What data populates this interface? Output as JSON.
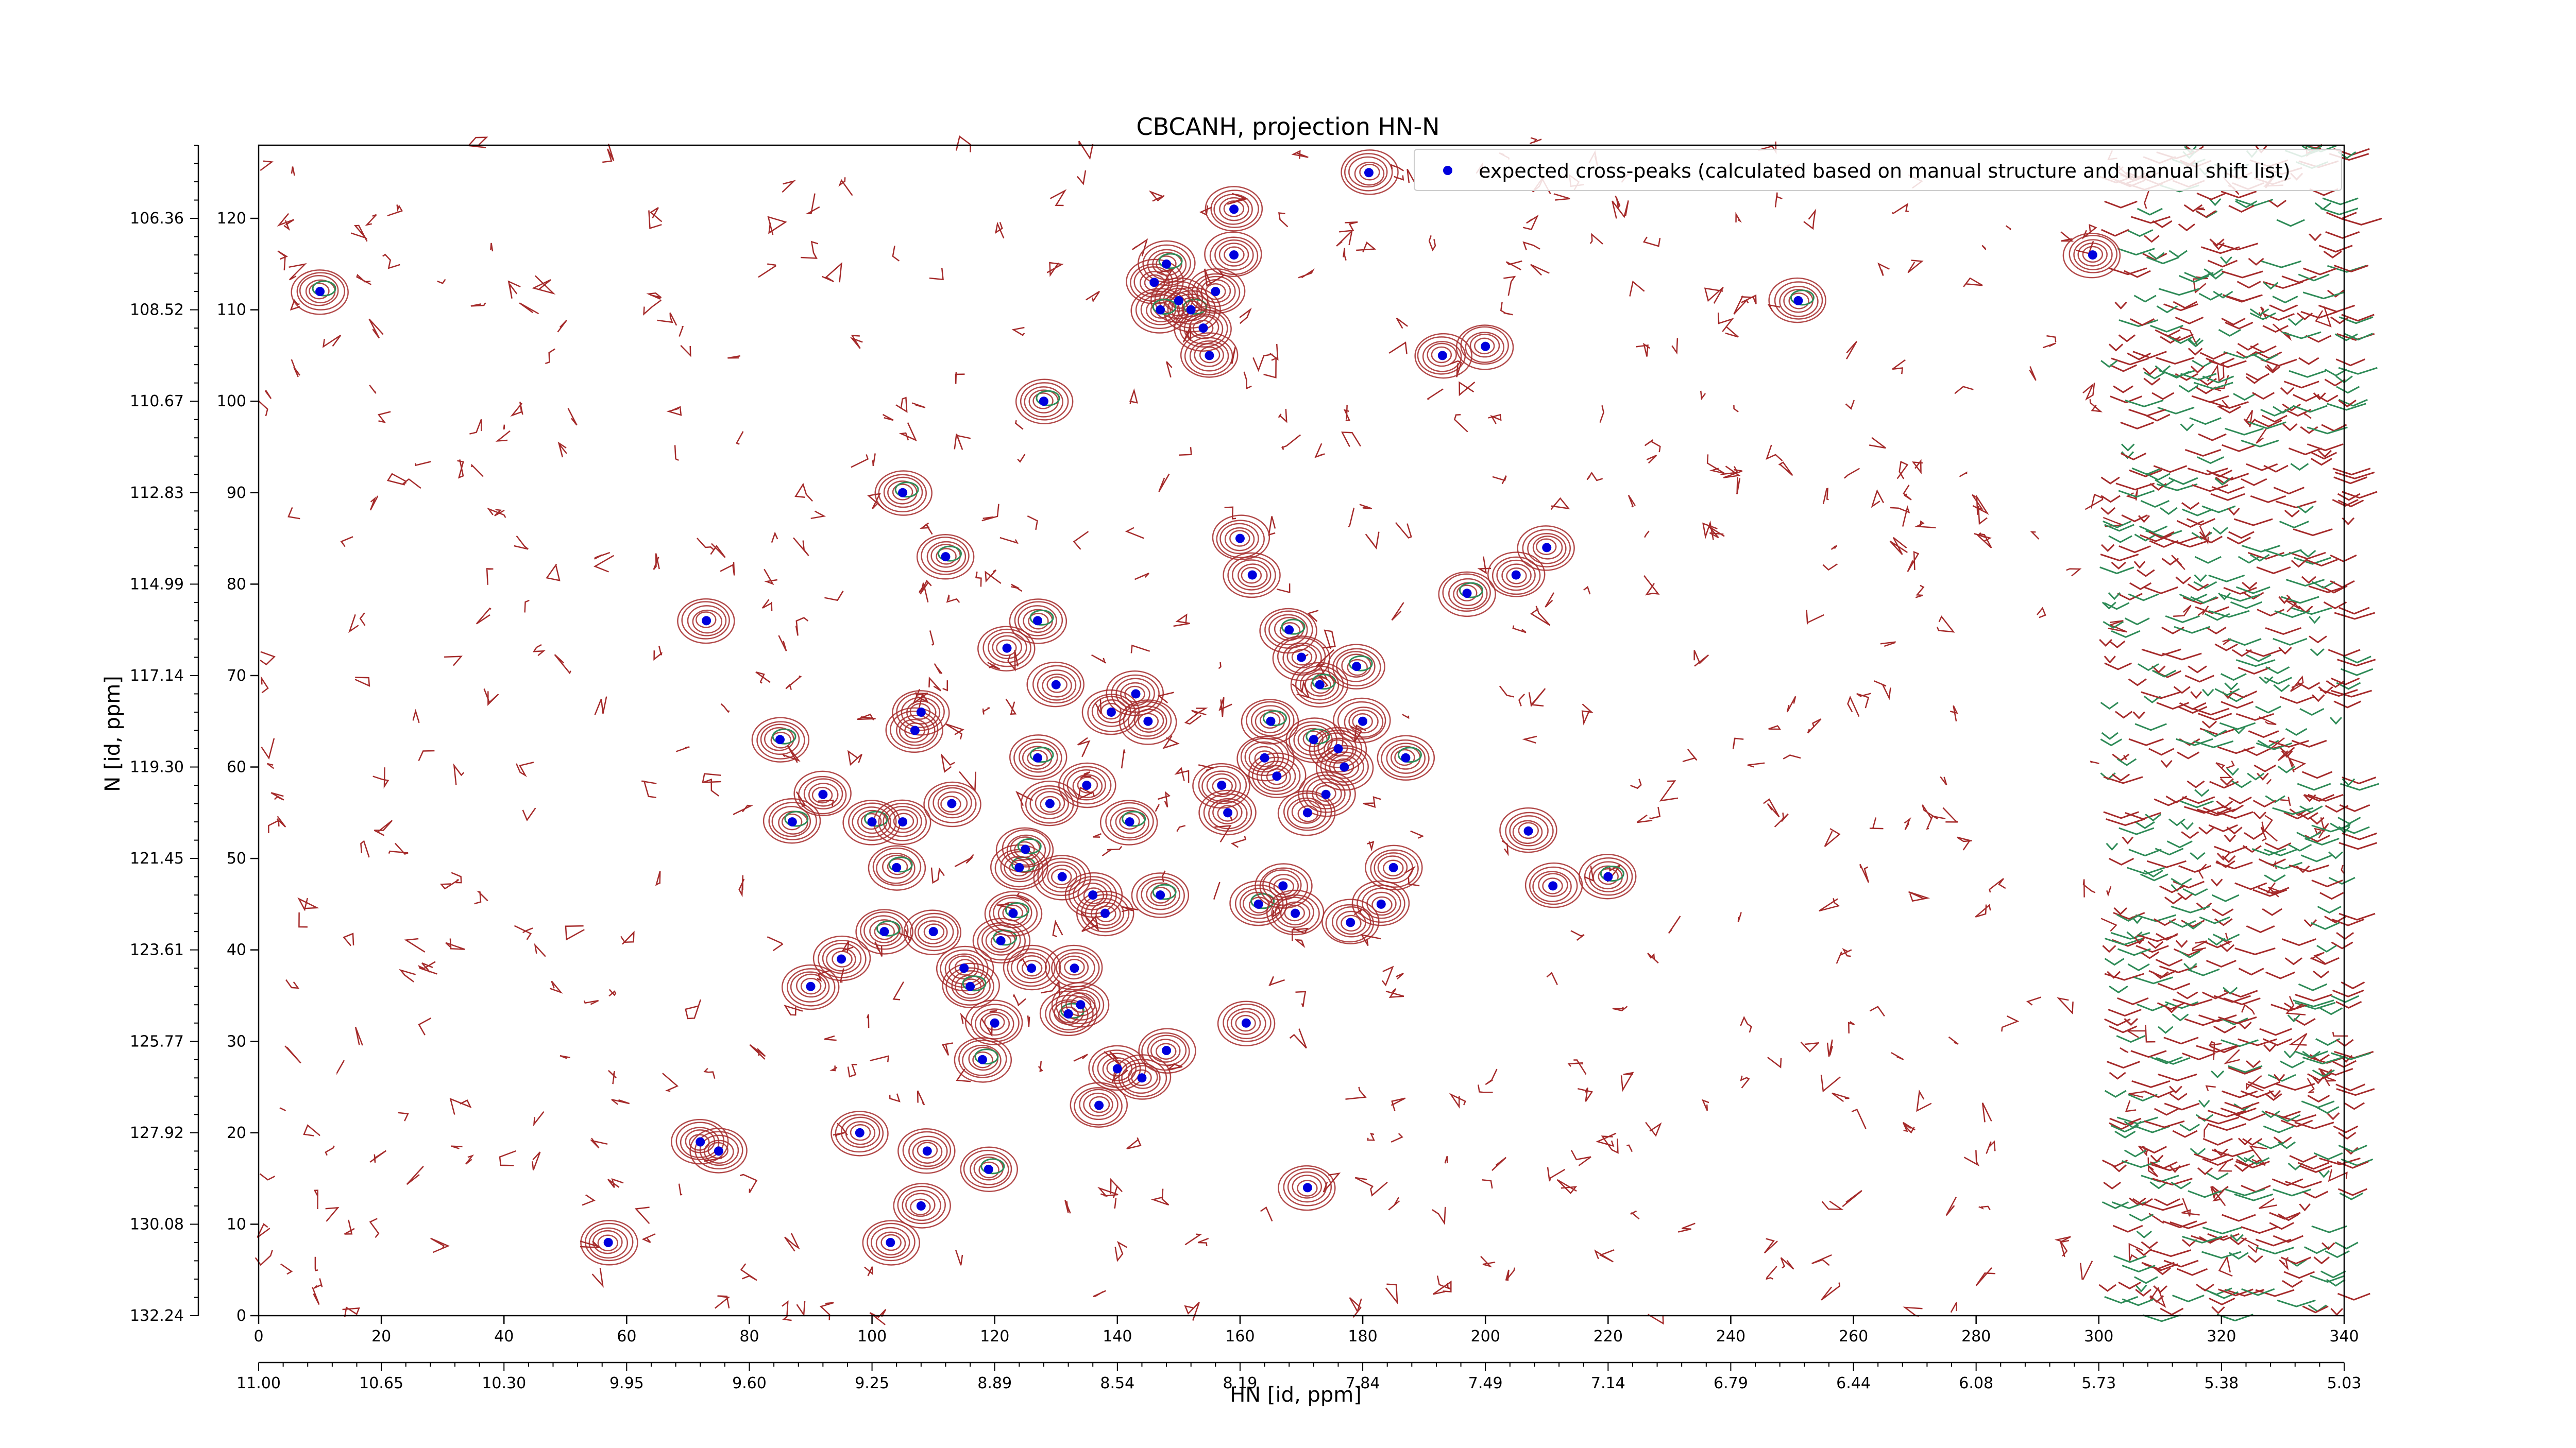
{
  "chart_data": {
    "type": "scatter",
    "title": "CBCANH, projection HN-N",
    "xlabel": "HN [id, ppm]",
    "ylabel": "N [id, ppm]",
    "xlim": [
      0,
      340
    ],
    "ylim": [
      0,
      128
    ],
    "x_index_ticks": [
      0,
      20,
      40,
      60,
      80,
      100,
      120,
      140,
      160,
      180,
      200,
      220,
      240,
      260,
      280,
      300,
      320,
      340
    ],
    "x_ppm_ticks": [
      "11.00",
      "10.65",
      "10.30",
      "9.95",
      "9.60",
      "9.25",
      "8.89",
      "8.54",
      "8.19",
      "7.84",
      "7.49",
      "7.14",
      "6.79",
      "6.44",
      "6.08",
      "5.73",
      "5.38",
      "5.03"
    ],
    "y_index_ticks": [
      0,
      10,
      20,
      30,
      40,
      50,
      60,
      70,
      80,
      90,
      100,
      110,
      120
    ],
    "y_ppm_ticks": [
      "132.24",
      "130.08",
      "127.92",
      "125.77",
      "123.61",
      "121.45",
      "119.30",
      "117.14",
      "114.99",
      "112.83",
      "110.67",
      "108.52",
      "106.36"
    ],
    "legend": {
      "position": "top-right",
      "label": "expected cross-peaks (calculated based on manual structure and manual shift list)"
    },
    "colors": {
      "peak": "#0000dd",
      "contour_pos": "#a52a2a",
      "contour_neg": "#2e8b57"
    },
    "series": [
      {
        "name": "expected cross-peaks (calculated based on manual structure and manual shift list)",
        "x": [
          10,
          57,
          72,
          75,
          73,
          85,
          87,
          90,
          92,
          95,
          98,
          100,
          102,
          103,
          104,
          105,
          105,
          107,
          108,
          108,
          109,
          110,
          112,
          113,
          115,
          116,
          118,
          119,
          120,
          121,
          122,
          123,
          124,
          125,
          126,
          127,
          127,
          128,
          129,
          130,
          131,
          132,
          133,
          134,
          135,
          136,
          137,
          138,
          139,
          140,
          142,
          143,
          144,
          145,
          146,
          147,
          148,
          150,
          152,
          154,
          155,
          156,
          157,
          158,
          159,
          160,
          161,
          162,
          163,
          164,
          165,
          166,
          167,
          168,
          169,
          170,
          171,
          172,
          173,
          174,
          176,
          177,
          178,
          179,
          180,
          183,
          185,
          187,
          193,
          197,
          200,
          205,
          207,
          210,
          211,
          220,
          251,
          299,
          181,
          148,
          147,
          159,
          171
        ],
        "y": [
          112,
          8,
          19,
          18,
          76,
          63,
          54,
          36,
          57,
          39,
          20,
          54,
          42,
          8,
          49,
          54,
          90,
          64,
          66,
          12,
          18,
          42,
          83,
          56,
          38,
          36,
          28,
          16,
          32,
          41,
          73,
          44,
          49,
          51,
          38,
          76,
          61,
          100,
          56,
          69,
          48,
          33,
          38,
          34,
          58,
          46,
          23,
          44,
          66,
          27,
          54,
          68,
          26,
          65,
          113,
          46,
          115,
          111,
          110,
          108,
          105,
          112,
          58,
          55,
          116,
          85,
          32,
          81,
          45,
          61,
          65,
          59,
          47,
          75,
          44,
          72,
          55,
          63,
          69,
          57,
          62,
          60,
          43,
          71,
          65,
          45,
          49,
          61,
          105,
          79,
          106,
          81,
          53,
          84,
          47,
          48,
          111,
          116,
          125,
          29,
          110,
          121,
          14
        ]
      }
    ]
  }
}
